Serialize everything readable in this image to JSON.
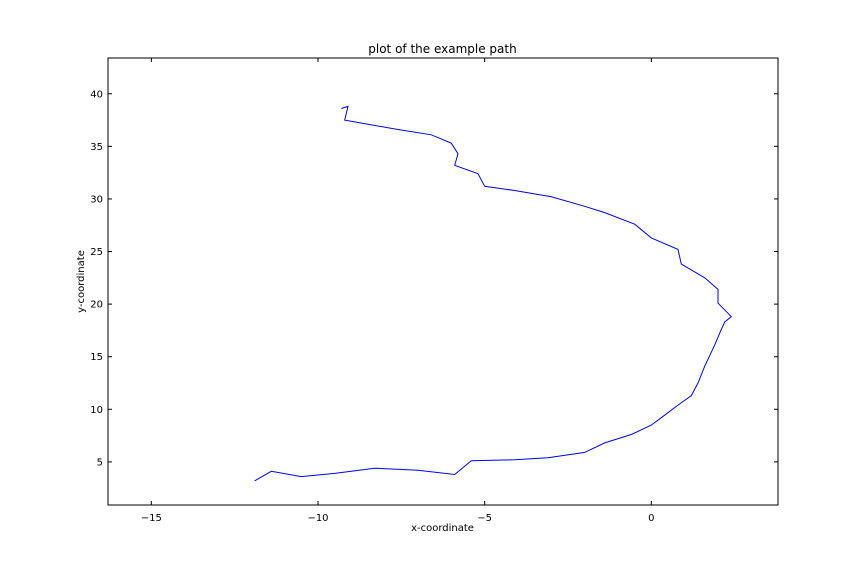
{
  "chart_data": {
    "type": "line",
    "title": "plot of the example path",
    "xlabel": "x-coordinate",
    "ylabel": "y-coordinate",
    "xlim": [
      -16.3,
      3.8
    ],
    "ylim": [
      0.9,
      43.4
    ],
    "grid": false,
    "xticks": [
      {
        "value": -15,
        "label": "−15"
      },
      {
        "value": -10,
        "label": "−10"
      },
      {
        "value": -5,
        "label": "−5"
      },
      {
        "value": 0,
        "label": "0"
      }
    ],
    "yticks": [
      {
        "value": 5,
        "label": "5"
      },
      {
        "value": 10,
        "label": "10"
      },
      {
        "value": 15,
        "label": "15"
      },
      {
        "value": 20,
        "label": "20"
      },
      {
        "value": 25,
        "label": "25"
      },
      {
        "value": 30,
        "label": "30"
      },
      {
        "value": 35,
        "label": "35"
      },
      {
        "value": 40,
        "label": "40"
      }
    ],
    "series": [
      {
        "color": "#0000ff",
        "x": [
          -11.9,
          -11.4,
          -10.5,
          -9.5,
          -8.3,
          -7.0,
          -5.9,
          -5.4,
          -4.1,
          -3.1,
          -2.0,
          -1.4,
          -0.6,
          0.0,
          0.3,
          0.8,
          1.2,
          1.4,
          1.6,
          1.9,
          2.1,
          2.2,
          2.4,
          2.0,
          2.0,
          1.6,
          0.9,
          0.8,
          0.0,
          -0.5,
          -1.4,
          -2.0,
          -3.0,
          -4.1,
          -5.0,
          -5.2,
          -5.9,
          -5.8,
          -6.0,
          -6.6,
          -7.6,
          -8.5,
          -9.2,
          -9.1,
          -9.3
        ],
        "y": [
          3.2,
          4.1,
          3.6,
          3.9,
          4.4,
          4.2,
          3.8,
          5.1,
          5.2,
          5.4,
          5.9,
          6.8,
          7.6,
          8.5,
          9.2,
          10.4,
          11.3,
          12.5,
          14.1,
          16.1,
          17.6,
          18.3,
          18.8,
          20.1,
          21.4,
          22.5,
          23.8,
          25.2,
          26.3,
          27.6,
          28.7,
          29.3,
          30.2,
          30.8,
          31.2,
          32.4,
          33.2,
          34.3,
          35.3,
          36.1,
          36.6,
          37.1,
          37.5,
          38.8,
          38.6
        ]
      }
    ]
  }
}
